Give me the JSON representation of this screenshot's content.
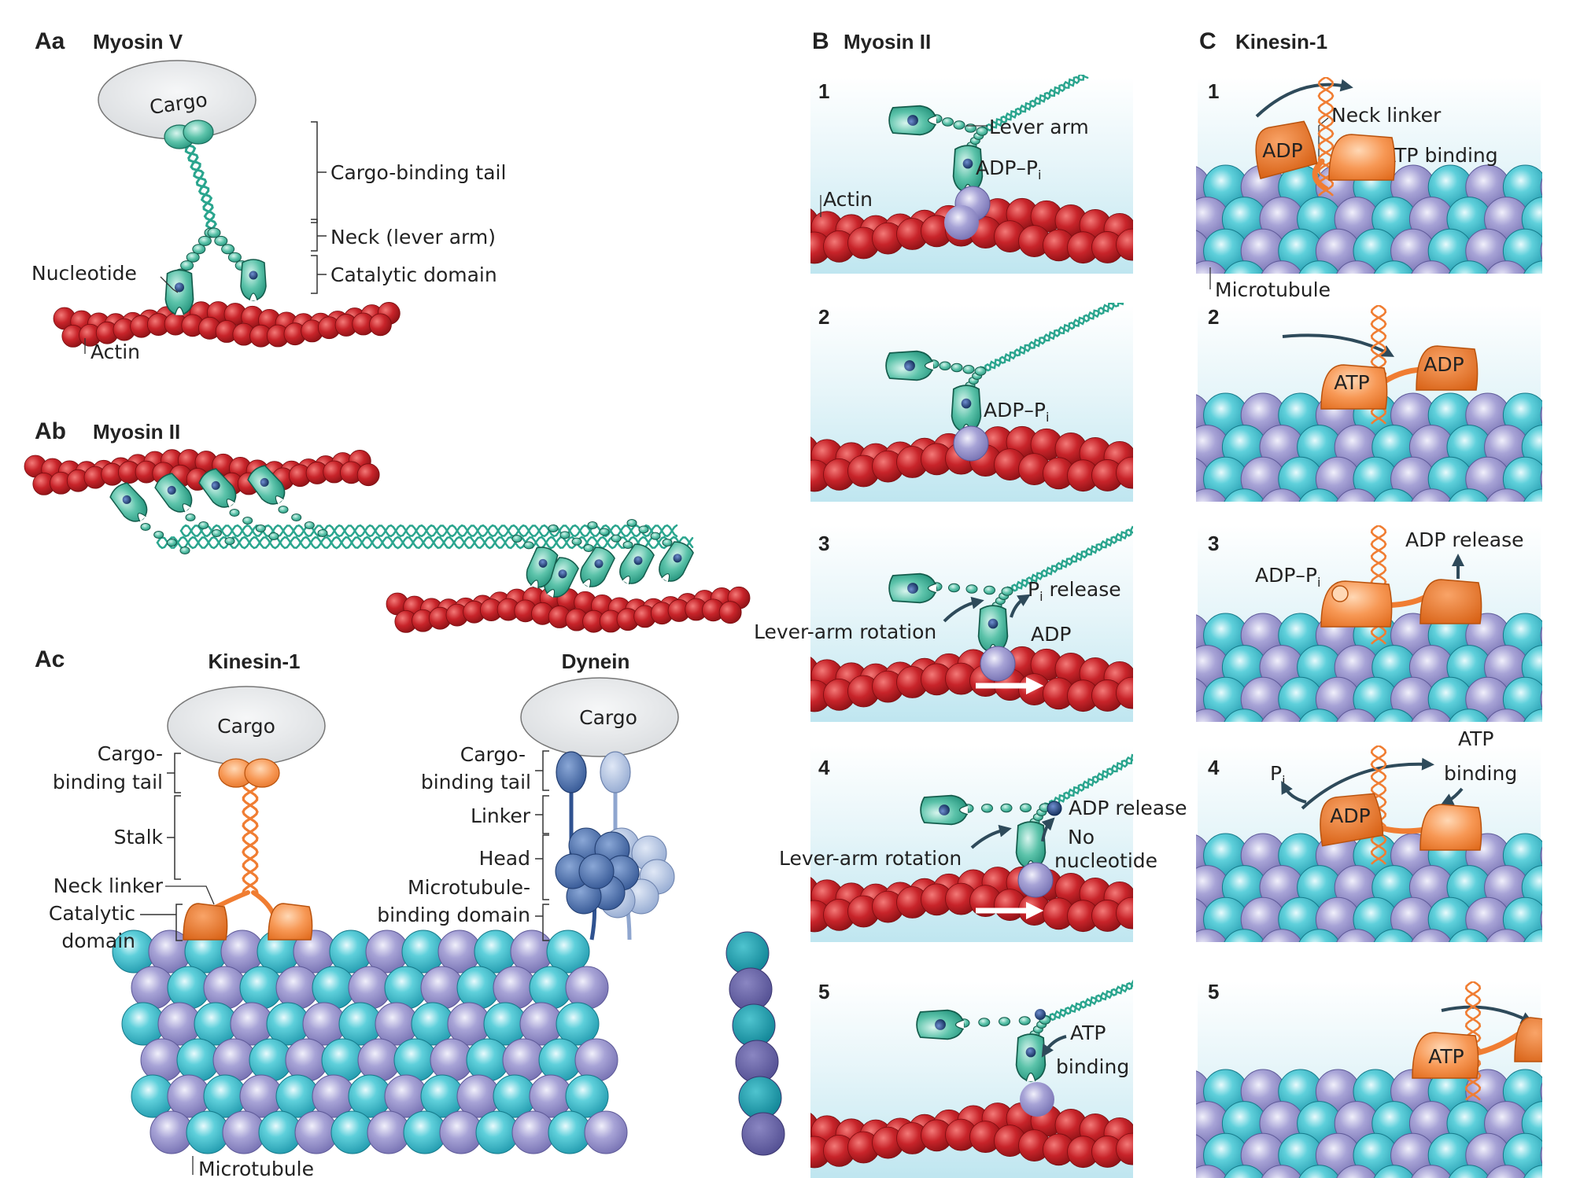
{
  "panels": {
    "Aa": {
      "letter": "Aa",
      "title": "Myosin V",
      "cargo": "Cargo",
      "labels": {
        "cargo_tail": "Cargo-binding tail",
        "neck": "Neck (lever arm)",
        "catalytic": "Catalytic domain",
        "nucleotide": "Nucleotide",
        "actin": "Actin"
      }
    },
    "Ab": {
      "letter": "Ab",
      "title": "Myosin II"
    },
    "Ac": {
      "letter": "Ac",
      "kinesin": {
        "title": "Kinesin-1",
        "cargo": "Cargo",
        "tail_1": "Cargo-",
        "tail_2": "binding tail",
        "stalk": "Stalk",
        "neck_linker": "Neck linker",
        "catalytic_1": "Catalytic",
        "catalytic_2": "domain"
      },
      "dynein": {
        "title": "Dynein",
        "cargo": "Cargo",
        "tail_1": "Cargo-",
        "tail_2": "binding tail",
        "linker": "Linker",
        "head": "Head",
        "mtbd_1": "Microtubule-",
        "mtbd_2": "binding domain"
      },
      "microtubule": "Microtubule"
    },
    "B": {
      "letter": "B",
      "title": "Myosin II",
      "steps": [
        {
          "n": "1",
          "lever_arm": "Lever arm",
          "adp": "ADP–P",
          "sub": "i",
          "actin": "Actin"
        },
        {
          "n": "2",
          "adp": "ADP–P",
          "sub": "i"
        },
        {
          "n": "3",
          "p": "P",
          "sub": "i",
          "release": " release",
          "rotation": "Lever-arm rotation",
          "adp": "ADP"
        },
        {
          "n": "4",
          "adp_release": "ADP release",
          "rotation": "Lever-arm rotation",
          "no_1": "No",
          "no_2": "nucleotide"
        },
        {
          "n": "5",
          "atp_1": "ATP",
          "atp_2": "binding"
        }
      ]
    },
    "C": {
      "letter": "C",
      "title": "Kinesin-1",
      "steps": [
        {
          "n": "1",
          "adp": "ADP",
          "neck_linker": "Neck linker",
          "atp_binding": "ATP binding",
          "microtubule": "Microtubule"
        },
        {
          "n": "2",
          "atp": "ATP",
          "adp": "ADP"
        },
        {
          "n": "3",
          "adp_pi": "ADP–P",
          "sub": "i",
          "adp_release": "ADP release"
        },
        {
          "n": "4",
          "p": "P",
          "sub": "i",
          "adp": "ADP",
          "atp_1": "ATP",
          "atp_2": "binding"
        },
        {
          "n": "5",
          "atp": "ATP"
        }
      ]
    }
  },
  "colors": {
    "actin": "#c8242a",
    "myosin": "#2aa58e",
    "kinesin": "#f07d32",
    "tubulin_teal": "#29b8c8",
    "tubulin_purple": "#8e89c6",
    "dynein": "#4a6faa",
    "water_top": "#ffffff",
    "water_bottom": "#bfe6f0",
    "nucleotide": "#1d3f73",
    "cargo": "#e7e9eb"
  }
}
